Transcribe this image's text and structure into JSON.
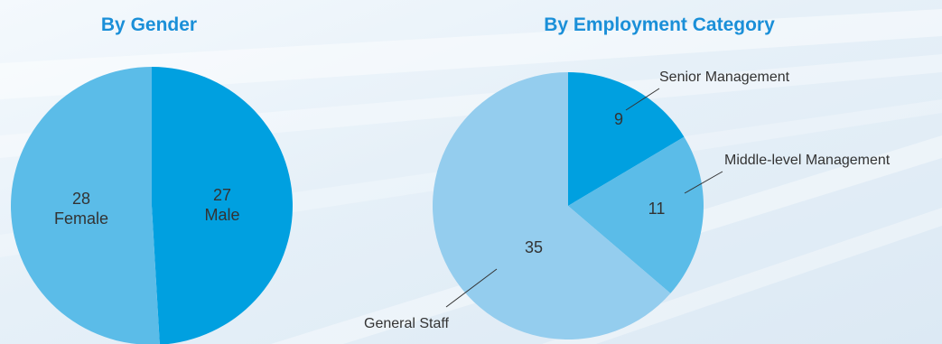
{
  "colors": {
    "accent": "#1a8fd8",
    "slice_dark": "#00a0e0",
    "slice_mid": "#5bbce8",
    "slice_light": "#94cdee",
    "text": "#333333"
  },
  "chart_data": [
    {
      "type": "pie",
      "title": "By Gender",
      "slices": [
        {
          "label": "Male",
          "value": 27,
          "color": "#00a0e0"
        },
        {
          "label": "Female",
          "value": 28,
          "color": "#5bbce8"
        }
      ]
    },
    {
      "type": "pie",
      "title": "By Employment Category",
      "slices": [
        {
          "label": "Senior Management",
          "value": 9,
          "color": "#00a0e0"
        },
        {
          "label": "Middle-level Management",
          "value": 11,
          "color": "#5bbce8"
        },
        {
          "label": "General Staff",
          "value": 35,
          "color": "#94cdee"
        }
      ]
    }
  ]
}
